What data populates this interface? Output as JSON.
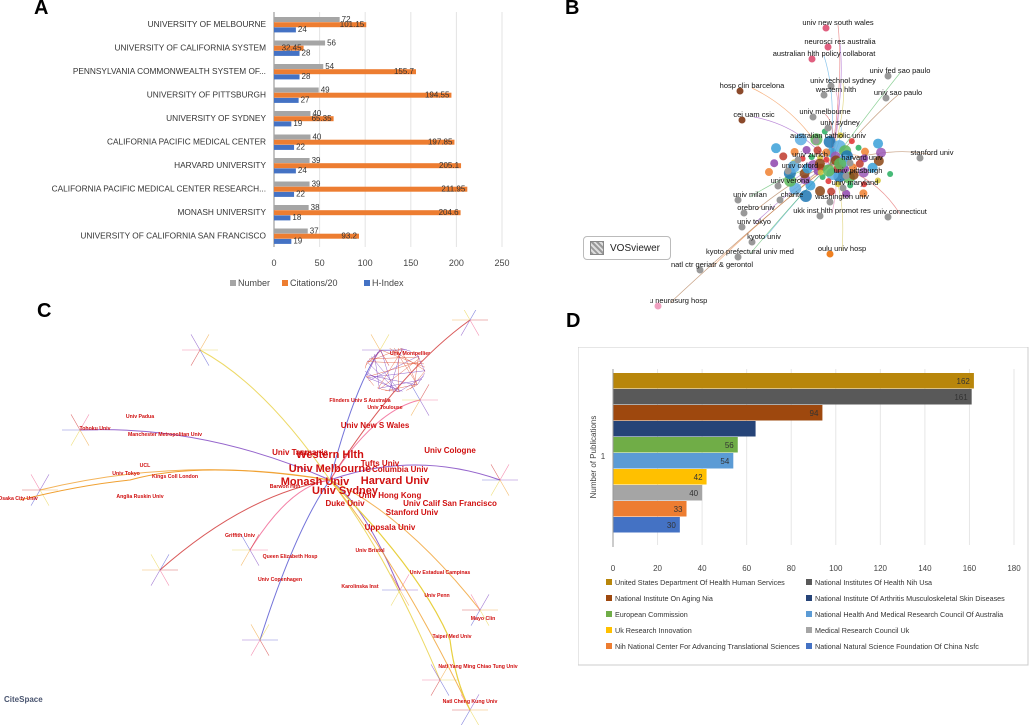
{
  "panel_labels": {
    "a": "A",
    "b": "B",
    "c": "C",
    "d": "D"
  },
  "chart_data": [
    {
      "type": "bar",
      "orientation": "horizontal",
      "panel": "A",
      "title": "",
      "categories": [
        "UNIVERSITY OF MELBOURNE",
        "UNIVERSITY OF CALIFORNIA SYSTEM",
        "PENNSYLVANIA COMMONWEALTH SYSTEM OF...",
        "UNIVERSITY OF PITTSBURGH",
        "UNIVERSITY OF SYDNEY",
        "CALIFORNIA PACIFIC MEDICAL CENTER",
        "HARVARD UNIVERSITY",
        "CALIFORNIA PACIFIC MEDICAL CENTER RESEARCH...",
        "MONASH UNIVERSITY",
        "UNIVERSITY OF CALIFORNIA SAN FRANCISCO"
      ],
      "series": [
        {
          "name": "Number",
          "color": "#a5a5a5",
          "values": [
            72,
            56,
            54,
            49,
            40,
            40,
            39,
            39,
            38,
            37
          ],
          "labels": [
            "72",
            "56",
            "54",
            "49",
            "40",
            "40",
            "39",
            "39",
            "38",
            "37"
          ]
        },
        {
          "name": "Citations/20",
          "color": "#ed7d31",
          "values": [
            101.15,
            32.45,
            155.7,
            194.55,
            65.35,
            197.85,
            205.1,
            211.95,
            204.6,
            93.2
          ],
          "labels": [
            "101.15",
            "32.45",
            "155.7",
            "194.55",
            "65.35",
            "197.85",
            "205.1",
            "211.95",
            "204.6",
            "93.2"
          ]
        },
        {
          "name": "H-Index",
          "color": "#4472c4",
          "values": [
            24,
            28,
            28,
            27,
            19,
            22,
            24,
            22,
            18,
            19
          ],
          "labels": [
            "24",
            "28",
            "28",
            "27",
            "19",
            "22",
            "24",
            "22",
            "18",
            "19"
          ]
        }
      ],
      "xlim": [
        0,
        250
      ],
      "xticks": [
        "0",
        "50",
        "100",
        "150",
        "200",
        "250"
      ],
      "legend_position": "bottom"
    },
    {
      "type": "bar",
      "orientation": "horizontal",
      "panel": "D",
      "title": "",
      "ylabel": "Number of Publications",
      "category_label": "1",
      "series": [
        {
          "name": "United States Department Of Health Human Services",
          "color": "#b8860b",
          "value": 162,
          "label": "162"
        },
        {
          "name": "National Institutes Of Health Nih Usa",
          "color": "#595959",
          "value": 161,
          "label": "161"
        },
        {
          "name": "National Institute On Aging Nia",
          "color": "#9e480e",
          "value": 94,
          "label": "94"
        },
        {
          "name": "National Institute Of Arthritis Musculoskeletal Skin Diseases",
          "color": "#264478",
          "value": 64,
          "label": ""
        },
        {
          "name": "European Commission",
          "color": "#70ad47",
          "value": 56,
          "label": "56"
        },
        {
          "name": "National Health And Medical Research Council Of Australia",
          "color": "#5b9bd5",
          "value": 54,
          "label": "54"
        },
        {
          "name": "Uk Research Innovation",
          "color": "#ffc000",
          "value": 42,
          "label": "42"
        },
        {
          "name": "Medical Research Council Uk",
          "color": "#a5a5a5",
          "value": 40,
          "label": "40"
        },
        {
          "name": "Nih National Center For Advancing Translational Sciences",
          "color": "#ed7d31",
          "value": 33,
          "label": "33"
        },
        {
          "name": "National Natural Science Foundation Of China Nsfc",
          "color": "#4472c4",
          "value": 30,
          "label": "30"
        }
      ],
      "xlim": [
        0,
        180
      ],
      "xticks": [
        "0",
        "20",
        "40",
        "60",
        "80",
        "100",
        "120",
        "140",
        "160",
        "180"
      ],
      "legend_position": "bottom"
    }
  ],
  "network_b": {
    "badge": "VOSviewer",
    "labels": [
      "univ new south wales",
      "neurosci res australia",
      "australian hlth policy collaborat",
      "univ fed sao paulo",
      "univ technol sydney",
      "hosp clin barcelona",
      "univ sao paulo",
      "western hlth",
      "univ melbourne",
      "cei uam csic",
      "univ sydney",
      "australian catholic univ",
      "univ zurich",
      "harvard univ",
      "stanford univ",
      "univ oxford",
      "univ pittsburgh",
      "univ verona",
      "univ maryland",
      "univ milan",
      "charite",
      "washington univ",
      "orebro univ",
      "ukk inst hlth promot res",
      "univ connecticut",
      "univ tokyo",
      "kyoto univ",
      "kyoto prefectural univ med",
      "oulu univ hosp",
      "natl ctr geriatr & gerontol",
      "toritsu neurosurg hosp"
    ]
  },
  "network_c": {
    "logo": "CiteSpace",
    "logo_sub": "",
    "big_labels": [
      "Univ Melbourne",
      "Monash Univ",
      "Western Hlth",
      "Univ Sydney",
      "Harvard Univ",
      "Univ Cologne",
      "Univ Tasmania",
      "Tufts Univ",
      "Columbia Univ",
      "Univ New S Wales",
      "Univ Hong Kong",
      "Univ Calif San Francisco",
      "Stanford Univ",
      "Duke Univ",
      "Uppsala Univ"
    ],
    "small_labels": [
      "Univ Padua",
      "Manchester Metropolitan Univ",
      "UCL",
      "Univ Tokyo",
      "Kings Coll London",
      "Anglia Ruskin Univ",
      "Osaka City Univ",
      "Tohoku Univ",
      "Griffith Univ",
      "Queen Elizabeth Hosp",
      "Univ Copenhagen",
      "Univ Estadual Campinas",
      "Karolinska Inst",
      "Univ Penn",
      "Mayo Clin",
      "Taipei Med Univ",
      "Natl Yang Ming Chiao Tung Univ",
      "Natl Cheng Kung Univ",
      "Flinders Univ S Australia",
      "Univ Montpellier",
      "Univ Toulouse",
      "Barwon Hlth",
      "Univ Bristol"
    ]
  }
}
